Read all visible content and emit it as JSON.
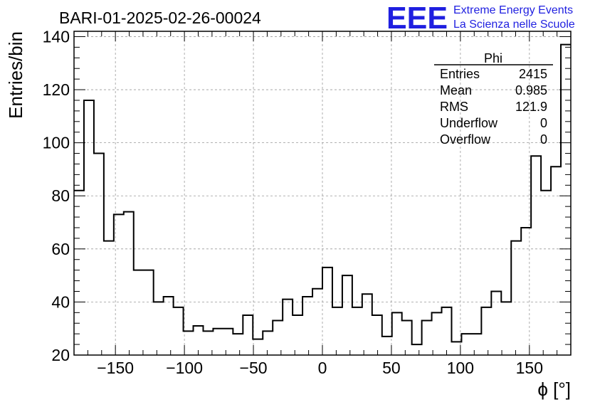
{
  "logo": {
    "mark": "EEE",
    "line1": "Extreme Energy Events",
    "line2": "La Scienza nelle Scuole",
    "color": "#1f1fe0"
  },
  "chart_data": {
    "type": "bar",
    "title": "BARI-01-2025-02-26-00024",
    "xlabel": "ϕ [°]",
    "ylabel": "Entries/bin",
    "xlim": [
      -180,
      180
    ],
    "ylim": [
      20,
      142
    ],
    "bin_width": 7.2,
    "xticks": [
      -150,
      -100,
      -50,
      0,
      50,
      100,
      150
    ],
    "xtick_labels": [
      "−150",
      "−100",
      "−50",
      "0",
      "50",
      "100",
      "150"
    ],
    "yticks": [
      20,
      40,
      60,
      80,
      100,
      120,
      140
    ],
    "ytick_labels": [
      "20",
      "40",
      "60",
      "80",
      "100",
      "120",
      "140"
    ],
    "grid": true,
    "legend": "none",
    "line_color": "#000000",
    "values": [
      82,
      116,
      96,
      63,
      73,
      74,
      52,
      52,
      40,
      42,
      38,
      29,
      31,
      29,
      30,
      30,
      28,
      35,
      26,
      29,
      33,
      41,
      35,
      42,
      45,
      53,
      38,
      50,
      38,
      43,
      35,
      27,
      36,
      33,
      24,
      33,
      36,
      38,
      25,
      28,
      28,
      38,
      44,
      40,
      63,
      68,
      95,
      82,
      91,
      137
    ],
    "stats": {
      "title": "Phi",
      "placement": "top-right",
      "rows": [
        {
          "label": "Entries",
          "value": "2415"
        },
        {
          "label": "Mean",
          "value": "0.985"
        },
        {
          "label": "RMS",
          "value": "121.9"
        },
        {
          "label": "Underflow",
          "value": "0"
        },
        {
          "label": "Overflow",
          "value": "0"
        }
      ]
    }
  }
}
